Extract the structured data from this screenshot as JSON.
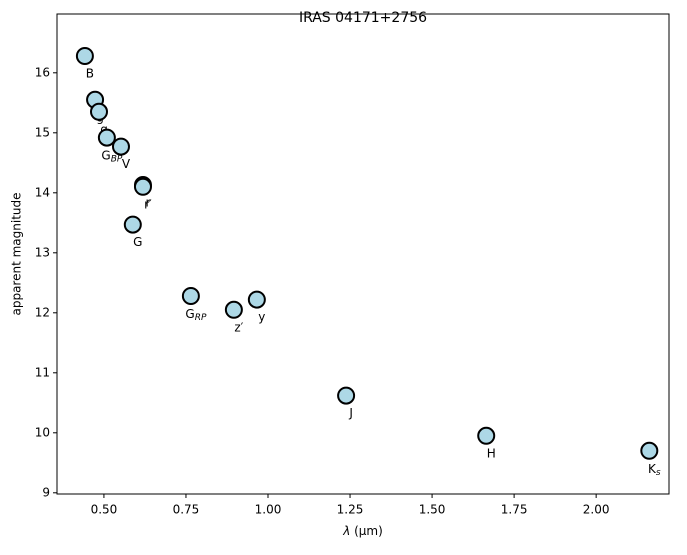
{
  "chart_data": {
    "type": "scatter",
    "title": "IRAS 04171+2756",
    "xlabel": {
      "symbol": "λ",
      "rest": " (μm)"
    },
    "ylabel": "apparent magnitude",
    "x": [
      0.442,
      0.473,
      0.485,
      0.509,
      0.552,
      0.619,
      0.619,
      0.588,
      0.765,
      0.896,
      0.966,
      1.238,
      1.665,
      2.162
    ],
    "values": [
      16.28,
      15.55,
      15.35,
      14.92,
      14.77,
      14.13,
      14.1,
      13.47,
      12.28,
      12.05,
      12.22,
      10.62,
      9.95,
      9.7
    ],
    "point_labels": [
      "B",
      "g",
      "g",
      {
        "base": "G",
        "sub": "BP"
      },
      "V",
      "r",
      "r′",
      "G",
      {
        "base": "G",
        "sub": "RP"
      },
      "z′",
      "y",
      "J",
      "H",
      {
        "base": "K",
        "sub": "s"
      }
    ],
    "color": "#add8e6",
    "edge_color": "#000000",
    "xlim": [
      0.357,
      2.222
    ],
    "ylim": [
      8.98,
      16.98
    ],
    "xticks": [
      {
        "value": 0.5,
        "label": "0.50"
      },
      {
        "value": 0.75,
        "label": "0.75"
      },
      {
        "value": 1.0,
        "label": "1.00"
      },
      {
        "value": 1.25,
        "label": "1.25"
      },
      {
        "value": 1.5,
        "label": "1.50"
      },
      {
        "value": 1.75,
        "label": "1.75"
      },
      {
        "value": 2.0,
        "label": "2.00"
      }
    ],
    "yticks": [
      9,
      10,
      11,
      12,
      13,
      14,
      15,
      16
    ]
  }
}
